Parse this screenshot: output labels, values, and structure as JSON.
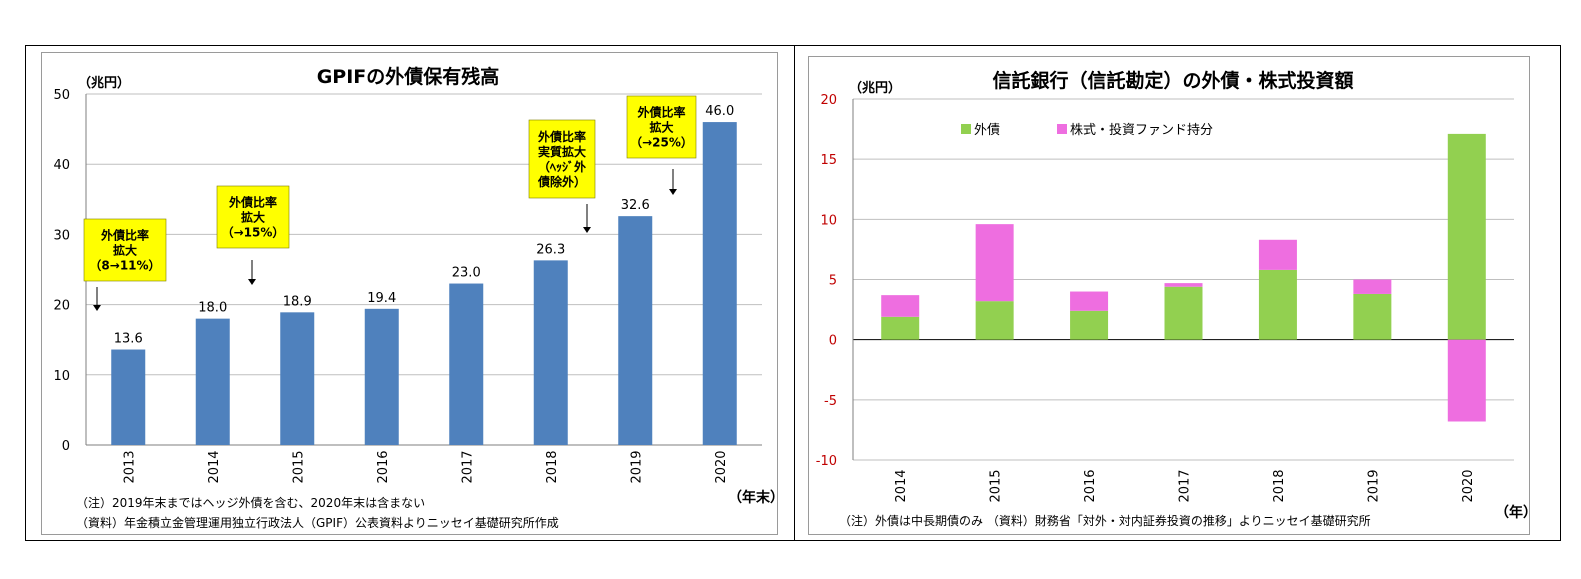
{
  "chart_data": [
    {
      "type": "bar",
      "title": "GPIFの外債保有残高",
      "ylabel": "（兆円）",
      "xlabel": "（年末）",
      "ylim": [
        0,
        50
      ],
      "yticks": [
        0,
        10,
        20,
        30,
        40,
        50
      ],
      "categories": [
        "2013",
        "2014",
        "2015",
        "2016",
        "2017",
        "2018",
        "2019",
        "2020"
      ],
      "values": [
        13.6,
        18.0,
        18.9,
        19.4,
        23.0,
        26.3,
        32.6,
        46.0
      ],
      "value_labels": [
        "13.6",
        "18.0",
        "18.9",
        "19.4",
        "23.0",
        "26.3",
        "32.6",
        "46.0"
      ],
      "bar_color": "#4f81bd",
      "grid": true,
      "annotations": [
        {
          "lines": [
            "外債比率",
            "拡大",
            "（8→11%）"
          ],
          "points_to": "2013"
        },
        {
          "lines": [
            "外債比率",
            "拡大",
            "（→15%）"
          ],
          "points_to": "2015"
        },
        {
          "lines": [
            "外債比率",
            "実質拡大",
            "（ﾍｯｼﾞ外",
            "債除外）"
          ],
          "points_to": "2019"
        },
        {
          "lines": [
            "外債比率",
            "拡大",
            "（→25%）"
          ],
          "points_to": "2020"
        }
      ],
      "annotation_color": "#ffff00",
      "notes": [
        "（注）2019年末まではヘッジ外債を含む、2020年末は含まない",
        "（資料）年金積立金管理運用独立行政法人（GPIF）公表資料よりニッセイ基礎研究所作成"
      ]
    },
    {
      "type": "bar",
      "stacked": true,
      "title": "信託銀行（信託勘定）の外債・株式投資額",
      "ylabel": "（兆円）",
      "xlabel": "（年）",
      "ylim": [
        -10,
        20
      ],
      "yticks": [
        -10,
        -5,
        0,
        5,
        10,
        15,
        20
      ],
      "categories": [
        "2014",
        "2015",
        "2016",
        "2017",
        "2018",
        "2019",
        "2020"
      ],
      "series": [
        {
          "name": "外債",
          "color": "#92d050",
          "values": [
            1.9,
            3.2,
            2.4,
            4.4,
            5.8,
            3.8,
            17.1
          ]
        },
        {
          "name": "株式・投資ファンド持分",
          "color": "#ee6ee0",
          "values": [
            1.8,
            6.4,
            1.6,
            0.3,
            2.5,
            1.2,
            -6.8
          ]
        }
      ],
      "grid": true,
      "legend_position": "top-left",
      "axis_label_color": "#c00000",
      "notes": [
        "（注）外債は中長期債のみ （資料）財務省「対外・対内証券投資の推移」よりニッセイ基礎研究所"
      ]
    }
  ]
}
